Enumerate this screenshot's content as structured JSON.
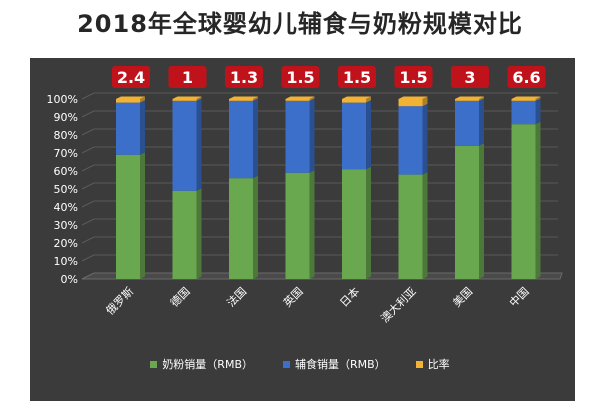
{
  "chart_data": {
    "type": "bar",
    "stacked": true,
    "title": "2018年全球婴幼儿辅食与奶粉规模对比",
    "categories": [
      "俄罗斯",
      "德国",
      "法国",
      "英国",
      "日本",
      "澳大利亚",
      "美国",
      "中国"
    ],
    "series": [
      {
        "name": "奶粉销量（RMB）",
        "color": "#6aa84f",
        "values": [
          69,
          49,
          56,
          59,
          61,
          58,
          74,
          86
        ]
      },
      {
        "name": "辅食销量（RMB）",
        "color": "#3c6fc9",
        "values": [
          29,
          50,
          43,
          40,
          37,
          38,
          25,
          13
        ]
      },
      {
        "name": "比率",
        "color": "#f2b233",
        "values": [
          2,
          1,
          1,
          1,
          2,
          4,
          1,
          1
        ]
      }
    ],
    "ratio_labels": [
      "2.4",
      "1",
      "1.3",
      "1.5",
      "1.5",
      "1.5",
      "3",
      "6.6"
    ],
    "yticks": [
      "0%",
      "10%",
      "20%",
      "30%",
      "40%",
      "50%",
      "60%",
      "70%",
      "80%",
      "90%",
      "100%"
    ],
    "ylim": [
      0,
      100
    ],
    "grid": true,
    "legend_position": "bottom",
    "background": "#3b3b3b",
    "label_badge_color": "#c0121a"
  }
}
